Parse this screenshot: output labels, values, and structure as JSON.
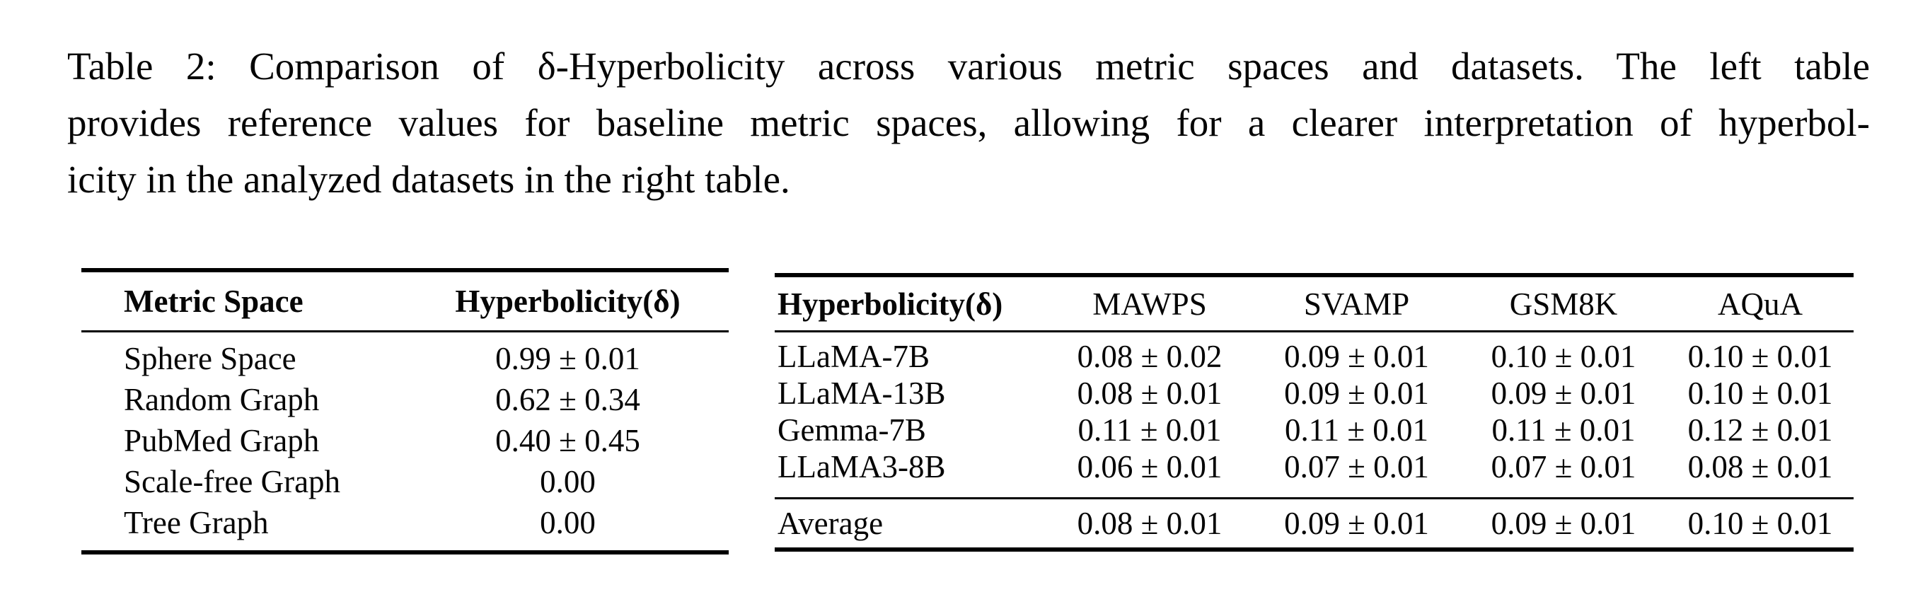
{
  "caption": {
    "lines": [
      "Table 2: Comparison of δ-Hyperbolicity across various metric spaces and datasets. The left table",
      "provides reference values for baseline metric spaces, allowing for a clearer interpretation of hyperbol-",
      "icity in the analyzed datasets in the right table."
    ]
  },
  "left_table": {
    "headers": [
      "Metric Space",
      "Hyperbolicity(δ)"
    ],
    "rows": [
      {
        "label": "Sphere Space",
        "value": "0.99 ± 0.01"
      },
      {
        "label": "Random Graph",
        "value": "0.62 ± 0.34"
      },
      {
        "label": "PubMed Graph",
        "value": "0.40 ± 0.45"
      },
      {
        "label": "Scale-free Graph",
        "value": "0.00"
      },
      {
        "label": "Tree Graph",
        "value": "0.00"
      }
    ]
  },
  "right_table": {
    "headers": [
      "Hyperbolicity(δ)",
      "MAWPS",
      "SVAMP",
      "GSM8K",
      "AQuA"
    ],
    "rows": [
      {
        "label": "LLaMA-7B",
        "values": [
          "0.08 ± 0.02",
          "0.09 ± 0.01",
          "0.10 ± 0.01",
          "0.10 ± 0.01"
        ]
      },
      {
        "label": "LLaMA-13B",
        "values": [
          "0.08 ± 0.01",
          "0.09 ± 0.01",
          "0.09 ± 0.01",
          "0.10 ± 0.01"
        ]
      },
      {
        "label": "Gemma-7B",
        "values": [
          "0.11 ± 0.01",
          "0.11 ± 0.01",
          "0.11 ± 0.01",
          "0.12 ± 0.01"
        ]
      },
      {
        "label": "LLaMA3-8B",
        "values": [
          "0.06 ± 0.01",
          "0.07 ± 0.01",
          "0.07 ± 0.01",
          "0.08 ± 0.01"
        ]
      }
    ],
    "footer": {
      "label": "Average",
      "values": [
        "0.08 ± 0.01",
        "0.09 ± 0.01",
        "0.09 ± 0.01",
        "0.10 ± 0.01"
      ]
    }
  },
  "colors": {
    "text": "#000000",
    "background": "#ffffff",
    "rule": "#000000"
  }
}
